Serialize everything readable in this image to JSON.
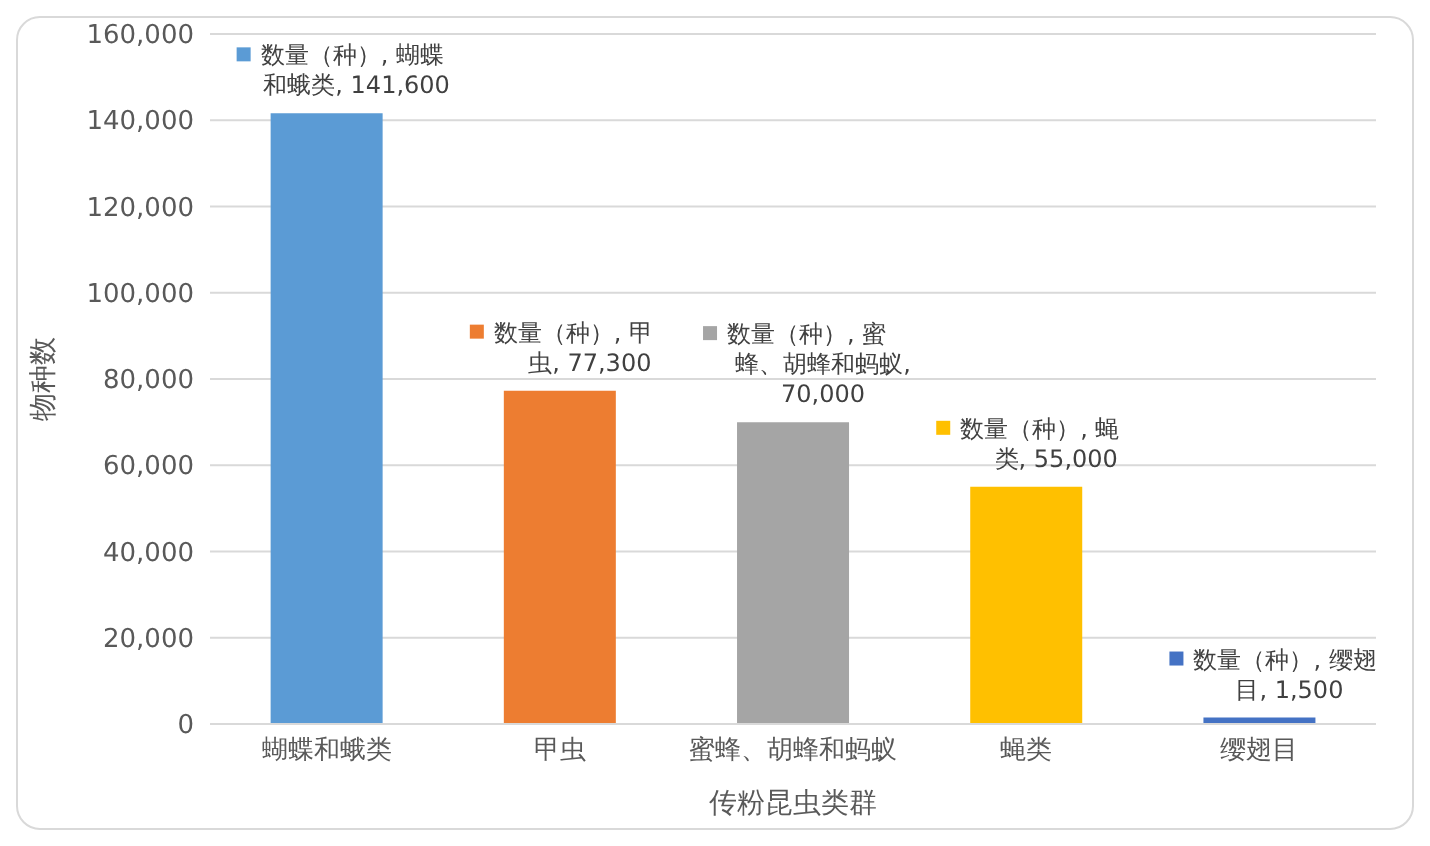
{
  "chart_data": {
    "type": "bar",
    "xlabel": "传粉昆虫类群",
    "ylabel": "物种数",
    "categories": [
      "蝴蝶和蛾类",
      "甲虫",
      "蜜蜂、胡蜂和蚂蚁",
      "蝇类",
      "缨翅目"
    ],
    "values": [
      141600,
      77300,
      70000,
      55000,
      1500
    ],
    "colors": [
      "#5b9bd5",
      "#ed7d31",
      "#a5a5a5",
      "#ffc000",
      "#4472c4"
    ],
    "value_labels": [
      "数量（种）, 蝴蝶和蛾类, 141,600",
      "数量（种）, 甲虫, 77,300",
      "数量（种）, 蜜蜂、胡蜂和蚂蚁, 70,000",
      "数量（种）, 蝇类, 55,000",
      "数量（种）, 缨翅目, 1,500"
    ],
    "ylim": [
      0,
      160000
    ],
    "yticks": [
      0,
      {
        "value": 20000,
        "label": "20,000"
      },
      {
        "value": 40000,
        "label": "40,000"
      },
      {
        "value": 60000,
        "label": "60,000"
      },
      {
        "value": 80000,
        "label": "80,000"
      },
      {
        "value": 100000,
        "label": "100,000"
      },
      {
        "value": 120000,
        "label": "120,000"
      },
      {
        "value": 140000,
        "label": "140,000"
      },
      {
        "value": 160000,
        "label": "160,000"
      }
    ],
    "grid": "y",
    "legend": false
  }
}
